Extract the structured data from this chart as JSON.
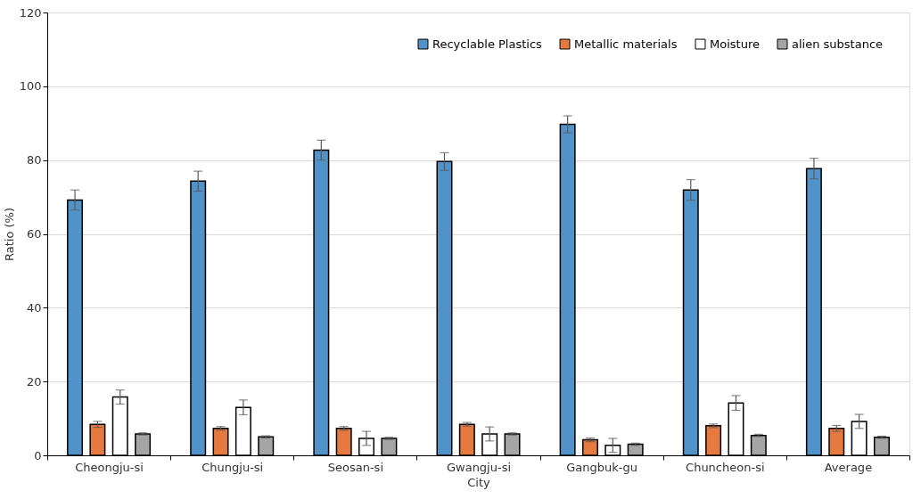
{
  "chart_data": {
    "type": "bar",
    "xlabel": "City",
    "ylabel": "Ratio (%)",
    "categories": [
      "Cheongju-si",
      "Chungju-si",
      "Seosan-si",
      "Gwangju-si",
      "Gangbuk-gu",
      "Chuncheon-si",
      "Average"
    ],
    "series": [
      {
        "name": "Recyclable Plastics",
        "color": "#5192c9",
        "values": [
          69.2,
          74.3,
          82.7,
          79.6,
          89.7,
          71.9,
          77.7
        ],
        "errors": [
          2.7,
          2.7,
          2.7,
          2.4,
          2.3,
          2.8,
          2.8
        ]
      },
      {
        "name": "Metallic materials",
        "color": "#e6793f",
        "values": [
          8.4,
          7.3,
          7.3,
          8.4,
          4.2,
          8.0,
          7.3
        ],
        "errors": [
          0.8,
          0.5,
          0.5,
          0.5,
          0.5,
          0.5,
          0.8
        ]
      },
      {
        "name": "Moisture",
        "color": "#ffffff",
        "values": [
          15.8,
          13.0,
          4.6,
          5.8,
          2.7,
          14.2,
          9.2
        ],
        "errors": [
          1.9,
          2.0,
          1.9,
          1.9,
          1.9,
          2.0,
          1.9
        ]
      },
      {
        "name": "alien substance",
        "color": "#a5a5a5",
        "values": [
          5.8,
          5.0,
          4.6,
          5.8,
          3.0,
          5.4,
          4.9
        ],
        "errors": [
          0.3,
          0.3,
          0.3,
          0.3,
          0.3,
          0.3,
          0.3
        ]
      }
    ],
    "ylim": [
      0,
      120
    ],
    "yticks": [
      0,
      20,
      40,
      60,
      80,
      100,
      120
    ],
    "grid": "y",
    "legend": "top right"
  }
}
